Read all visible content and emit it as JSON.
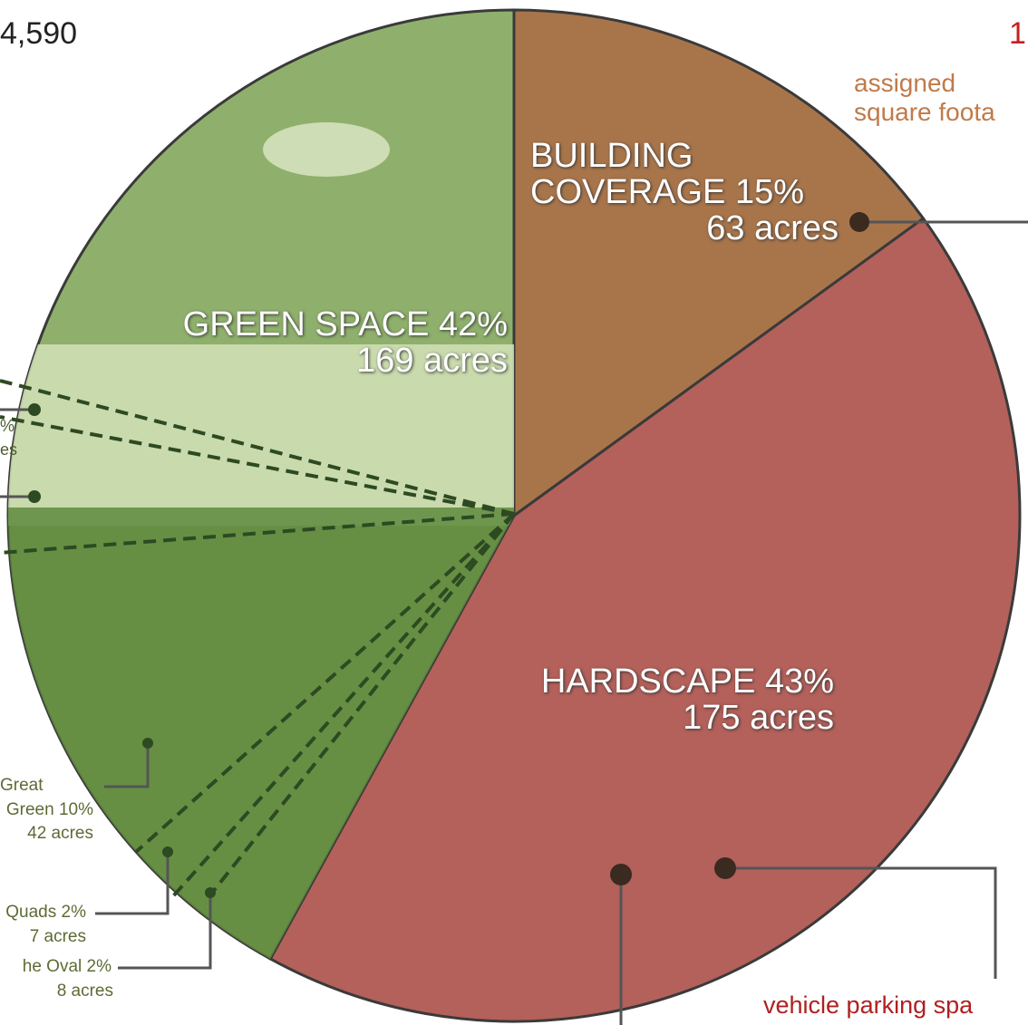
{
  "chart_data": {
    "type": "pie",
    "categories": [
      "BUILDING COVERAGE",
      "HARDSCAPE",
      "GREEN SPACE"
    ],
    "values": [
      15,
      43,
      42
    ],
    "value_labels": [
      "15%",
      "43%",
      "42%"
    ],
    "acre_labels": [
      "63 acres",
      "175 acres",
      "169 acres"
    ],
    "colors": [
      "#a8754b",
      "#b3615a",
      "#8fb06c"
    ],
    "annotations": [
      "4,590",
      "1",
      "assigned",
      "square foota",
      "%",
      "es",
      "Great",
      "Green 10%",
      "42 acres",
      "Quads 2%",
      "7 acres",
      "he Oval 2%",
      "8 acres",
      "vehicle parking spa"
    ]
  }
}
